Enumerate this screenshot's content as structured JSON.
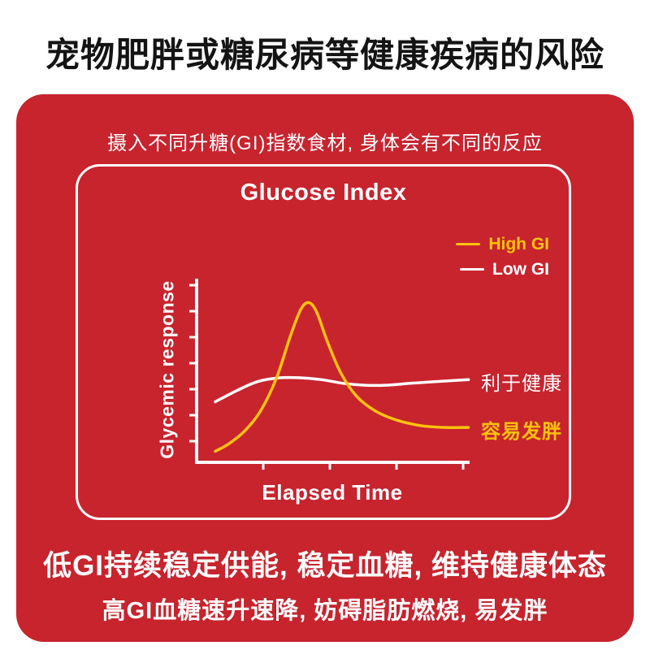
{
  "page": {
    "heading": "宠物肥胖或糖尿病等健康疾病的风险",
    "card_subtitle": "摄入不同升糖(GI)指数食材, 身体会有不同的反应",
    "footer_line1": "低GI持续稳定供能, 稳定血糖, 维持健康体态",
    "footer_line2": "高GI血糖速升速降, 妨碍脂肪燃烧, 易发胖"
  },
  "colors": {
    "card_red": "#C7242E",
    "high_gi_yellow": "#FFC20E",
    "low_gi_white": "#FFFFFF",
    "heading_black": "#141414"
  },
  "chart_data": {
    "type": "line",
    "title": "Glucose Index",
    "xlabel": "Elapsed Time",
    "ylabel": "Glycemic response",
    "xlim": [
      0,
      10
    ],
    "ylim": [
      0,
      10
    ],
    "grid": false,
    "legend_position": "top-right",
    "y_ticks": 7,
    "x_ticks": 4,
    "series": [
      {
        "name": "High GI",
        "color": "#FFC20E",
        "x": [
          0.7,
          1.2,
          1.8,
          2.4,
          3.0,
          3.5,
          3.9,
          4.2,
          4.5,
          4.9,
          5.4,
          6.0,
          6.7,
          7.5,
          8.4,
          9.3,
          10.2
        ],
        "y": [
          0.6,
          1.0,
          1.7,
          2.8,
          4.6,
          6.8,
          8.3,
          8.7,
          8.2,
          6.6,
          4.9,
          3.6,
          2.8,
          2.3,
          2.0,
          1.9,
          1.9
        ]
      },
      {
        "name": "Low GI",
        "color": "#FFFFFF",
        "x": [
          0.7,
          1.5,
          2.3,
          3.1,
          3.9,
          4.7,
          5.5,
          6.3,
          7.1,
          8.0,
          9.0,
          10.2
        ],
        "y": [
          3.3,
          3.9,
          4.4,
          4.6,
          4.6,
          4.5,
          4.3,
          4.2,
          4.2,
          4.3,
          4.4,
          4.5
        ]
      }
    ],
    "annotations": [
      {
        "text": "利于健康",
        "color": "#FFFFFF",
        "series": "Low GI",
        "position": "right-of-low-gi-curve-end"
      },
      {
        "text": "容易发胖",
        "color": "#FFC20E",
        "series": "High GI",
        "position": "right-of-high-gi-curve-end"
      }
    ]
  }
}
